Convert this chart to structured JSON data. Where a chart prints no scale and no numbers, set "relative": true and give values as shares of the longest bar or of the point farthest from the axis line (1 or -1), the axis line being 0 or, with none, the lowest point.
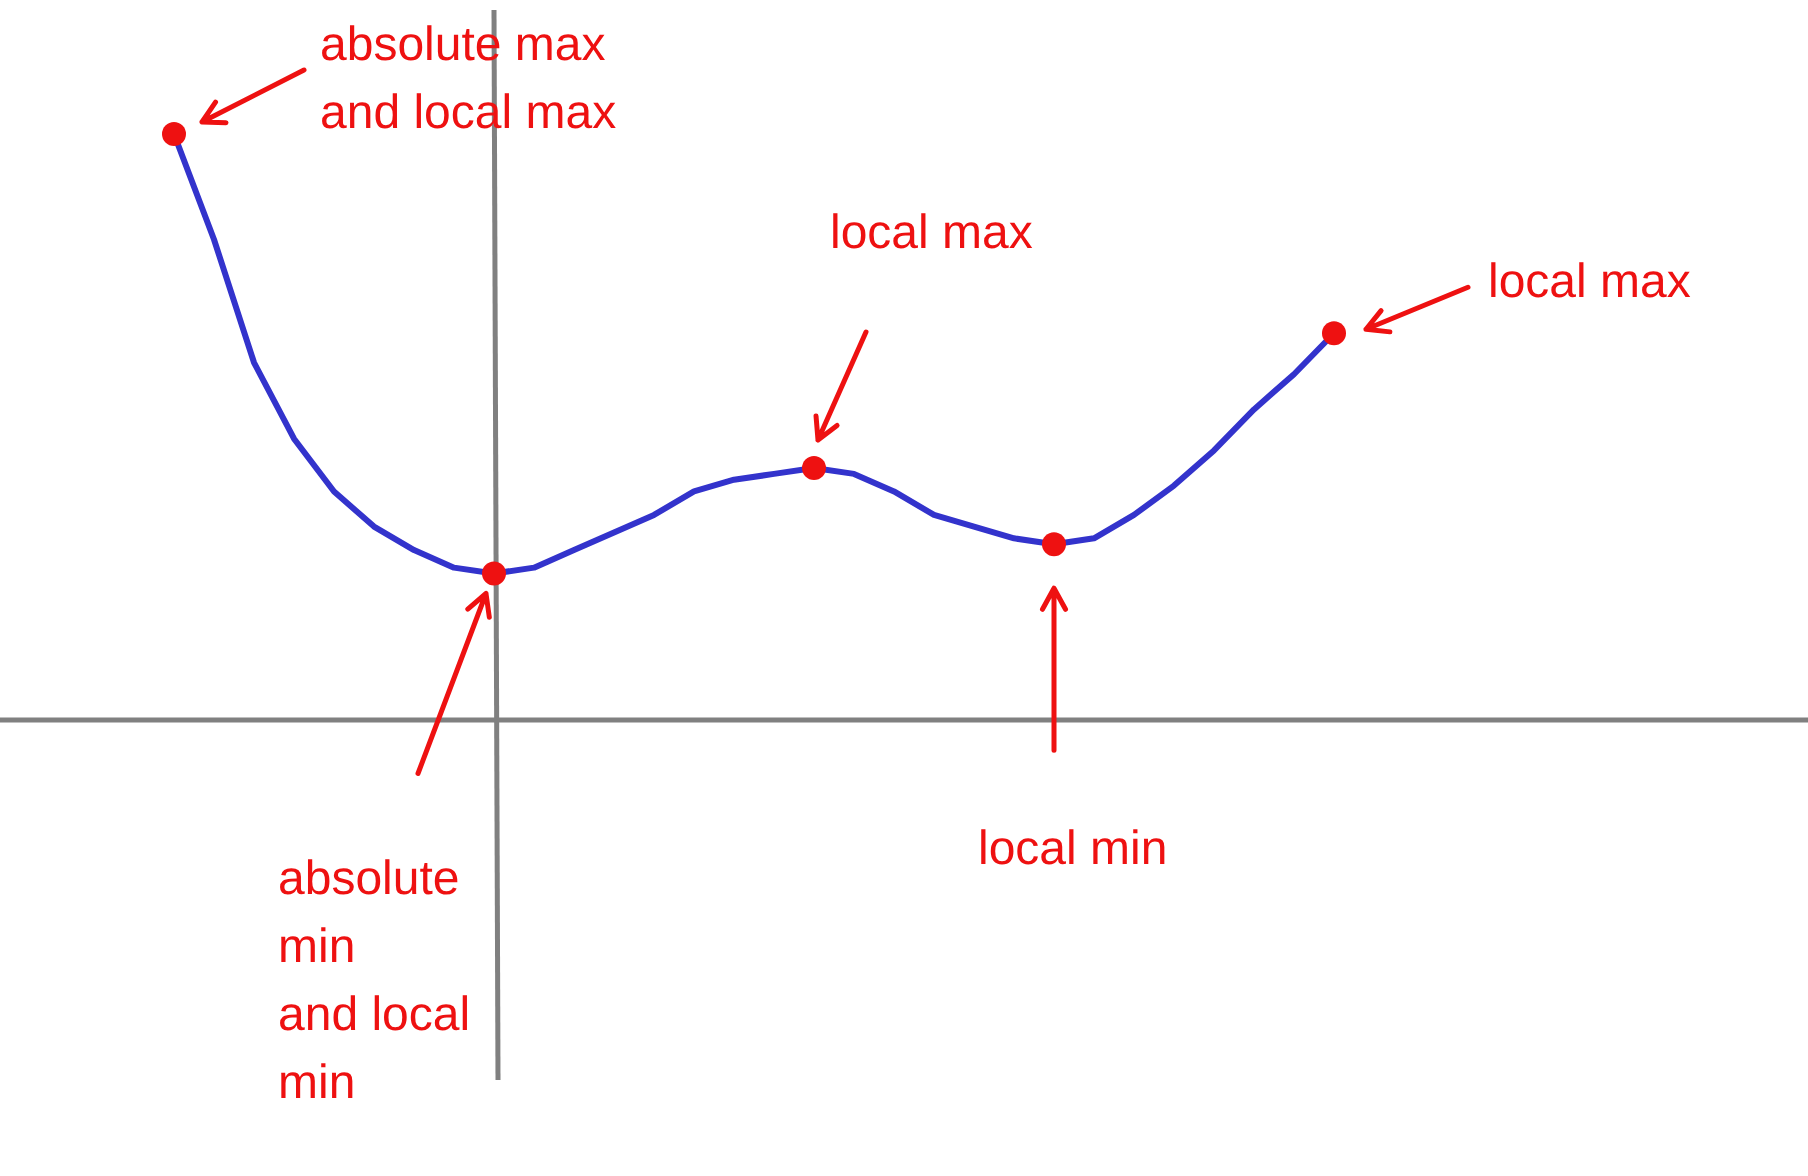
{
  "chart_data": {
    "type": "line",
    "relative": true,
    "categories": [
      null,
      null,
      null,
      null,
      null,
      null,
      null,
      null,
      null,
      null,
      null,
      null,
      null,
      null,
      null,
      null,
      null,
      null,
      null,
      null,
      null,
      null,
      null,
      null,
      null,
      null,
      null,
      null,
      null,
      null
    ],
    "series": [
      {
        "color": "#3333cc",
        "marker": "none",
        "line_style": "solid",
        "values": [
          1.0,
          0.82,
          0.61,
          0.48,
          0.39,
          0.33,
          0.29,
          0.26,
          0.25,
          0.26,
          0.29,
          0.32,
          0.35,
          0.39,
          0.41,
          0.42,
          0.43,
          0.42,
          0.39,
          0.35,
          0.33,
          0.31,
          0.3,
          0.31,
          0.35,
          0.4,
          0.46,
          0.53,
          0.59,
          0.66
        ]
      }
    ],
    "annotations": [
      "absolute max and local max",
      "absolute min and local min",
      "local max",
      "local min",
      "local max"
    ],
    "grid": false
  }
}
